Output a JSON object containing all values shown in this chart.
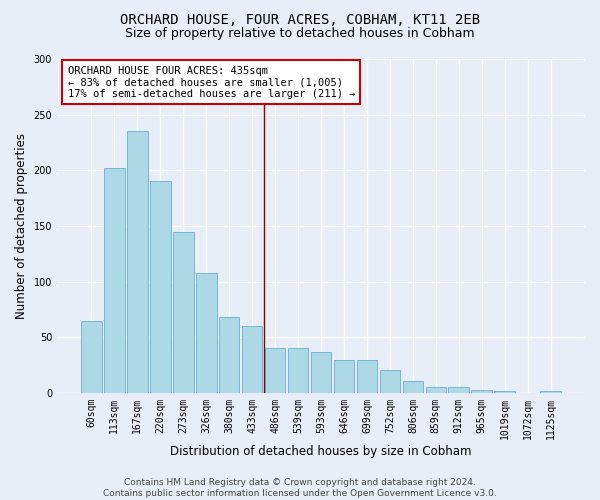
{
  "title": "ORCHARD HOUSE, FOUR ACRES, COBHAM, KT11 2EB",
  "subtitle": "Size of property relative to detached houses in Cobham",
  "xlabel": "Distribution of detached houses by size in Cobham",
  "ylabel": "Number of detached properties",
  "categories": [
    "60sqm",
    "113sqm",
    "167sqm",
    "220sqm",
    "273sqm",
    "326sqm",
    "380sqm",
    "433sqm",
    "486sqm",
    "539sqm",
    "593sqm",
    "646sqm",
    "699sqm",
    "752sqm",
    "806sqm",
    "859sqm",
    "912sqm",
    "965sqm",
    "1019sqm",
    "1072sqm",
    "1125sqm"
  ],
  "values": [
    65,
    202,
    235,
    190,
    145,
    108,
    68,
    60,
    40,
    40,
    37,
    30,
    30,
    21,
    11,
    5,
    5,
    3,
    2,
    0,
    2
  ],
  "bar_color": "#add8e6",
  "bar_edge_color": "#6baed6",
  "vline_x": 7.5,
  "vline_color": "#8b0000",
  "annotation_text": "ORCHARD HOUSE FOUR ACRES: 435sqm\n← 83% of detached houses are smaller (1,005)\n17% of semi-detached houses are larger (211) →",
  "annotation_box_color": "#ffffff",
  "annotation_box_edge_color": "#cc0000",
  "ylim": [
    0,
    300
  ],
  "yticks": [
    0,
    50,
    100,
    150,
    200,
    250,
    300
  ],
  "footer_line1": "Contains HM Land Registry data © Crown copyright and database right 2024.",
  "footer_line2": "Contains public sector information licensed under the Open Government Licence v3.0.",
  "background_color": "#e8eef8",
  "grid_color": "#ffffff",
  "title_fontsize": 10,
  "subtitle_fontsize": 9,
  "axis_label_fontsize": 8.5,
  "tick_fontsize": 7,
  "annotation_fontsize": 7.5,
  "footer_fontsize": 6.5
}
